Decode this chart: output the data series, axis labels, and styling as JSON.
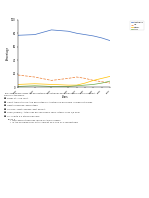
{
  "years": [
    1901,
    1921,
    1941,
    1961,
    1971,
    1981,
    1991,
    2001,
    2011
  ],
  "series": [
    {
      "label": "Australia",
      "color": "#4472C4",
      "style": "-",
      "values": [
        77,
        78,
        85,
        83,
        80,
        78,
        76,
        73,
        69
      ]
    },
    {
      "label": "UK",
      "color": "#ED7D31",
      "style": "--",
      "values": [
        18,
        15,
        10,
        13,
        15,
        13,
        10,
        8,
        6
      ]
    },
    {
      "label": "Other",
      "color": "#FFC000",
      "style": "-",
      "values": [
        4,
        5,
        4,
        3,
        3,
        6,
        10,
        13,
        16
      ]
    },
    {
      "label": "Asia",
      "color": "#70AD47",
      "style": "-",
      "values": [
        1,
        2,
        1,
        1,
        2,
        3,
        4,
        6,
        9
      ]
    }
  ],
  "xlabel": "Years",
  "ylabel": "Percentage",
  "ylim": [
    0,
    100
  ],
  "yticks": [
    0,
    20,
    40,
    60,
    80,
    100
  ],
  "pdf_color": "#1a1a1a",
  "background_color": "#ffffff",
  "text_lines": [
    "The chart below shows the percentage of Australian people who were born in different",
    "places of the world.",
    "",
    "■  Essay pt: Line chart",
    "",
    "■  Chart topic into link: the percentage of Australians were born in Different places",
    "",
    "■  How to describe: percentage",
    "",
    "■  Line No.: past changes, past perfect",
    "",
    "■  Time (Overall): total lines decline before 1981, Others rises 1/5 of all",
    "",
    "■  Fill in with 3-4 Steps Main Info:",
    "",
    "      Body 1",
    "         •  total percent declines, while In-Asia increases",
    "         •  In the following year, both climb at 45% and 47% respectively"
  ]
}
